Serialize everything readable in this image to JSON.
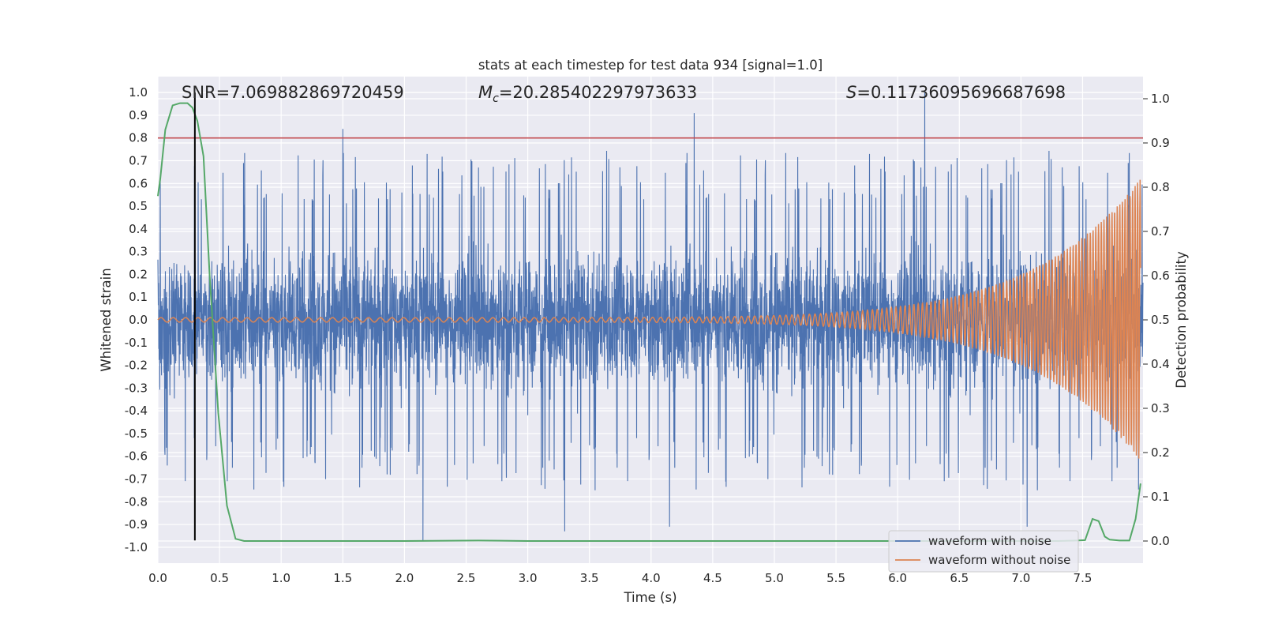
{
  "chart_data": {
    "type": "line",
    "title": "stats at each timestep for test data 934 [signal=1.0]",
    "xlabel": "Time (s)",
    "ylabel_left": "Whitened strain",
    "ylabel_right": "Detection probability",
    "xlim": [
      0.0,
      7.99
    ],
    "ylim_left": [
      -1.07,
      1.07
    ],
    "ylim_right": [
      -0.05,
      1.05
    ],
    "x_ticks": [
      "0.0",
      "0.5",
      "1.0",
      "1.5",
      "2.0",
      "2.5",
      "3.0",
      "3.5",
      "4.0",
      "4.5",
      "5.0",
      "5.5",
      "6.0",
      "6.5",
      "7.0",
      "7.5"
    ],
    "y_left_ticks": [
      "1.0",
      "0.9",
      "0.8",
      "0.7",
      "0.6",
      "0.5",
      "0.4",
      "0.3",
      "0.2",
      "0.1",
      "0.0",
      "-0.1",
      "-0.2",
      "-0.3",
      "-0.4",
      "-0.5",
      "-0.6",
      "-0.7",
      "-0.8",
      "-0.9",
      "-1.0"
    ],
    "y_right_ticks": [
      "1.0",
      "0.9",
      "0.8",
      "0.7",
      "0.6",
      "0.5",
      "0.4",
      "0.3",
      "0.2",
      "0.1",
      "0.0"
    ],
    "annotations": {
      "snr": "SNR=7.069882869720459",
      "mc_symbol": "M",
      "mc_subscript": "c",
      "mc_value": "=20.285402297973633",
      "s_symbol": "S",
      "s_value": "=0.11736095696687698"
    },
    "threshold_line": {
      "y_left": 0.8,
      "color": "#c44e52"
    },
    "marker_line": {
      "x": 0.3,
      "y_from": -0.97,
      "y_to": 1.0,
      "color": "#000000"
    },
    "legend": {
      "location": "lower-right",
      "entries": [
        {
          "label": "waveform with noise",
          "color": "#4c72b0"
        },
        {
          "label": "waveform without noise",
          "color": "#dd8452"
        }
      ]
    },
    "series": [
      {
        "name": "waveform with noise",
        "color": "#4c72b0",
        "axis": "left",
        "typical_amplitude": 0.4,
        "notable_peaks": [
          {
            "x": 1.5,
            "y": 0.84
          },
          {
            "x": 4.35,
            "y": 0.91
          },
          {
            "x": 6.22,
            "y": 1.0
          },
          {
            "x": 2.15,
            "y": -0.97
          },
          {
            "x": 3.3,
            "y": -0.93
          },
          {
            "x": 4.15,
            "y": -0.91
          },
          {
            "x": 7.05,
            "y": -0.91
          }
        ]
      },
      {
        "name": "waveform without noise",
        "color": "#dd8452",
        "axis": "left",
        "start_amplitude": 0.01,
        "end_amplitude": 0.62,
        "start_frequency_hz": 10,
        "end_frequency_hz": 50
      },
      {
        "name": "detection probability",
        "color": "#55a868",
        "axis": "right",
        "x": [
          0.0,
          0.02,
          0.06,
          0.12,
          0.18,
          0.24,
          0.28,
          0.32,
          0.37,
          0.42,
          0.49,
          0.56,
          0.63,
          0.7,
          1.0,
          2.0,
          2.6,
          3.0,
          4.0,
          5.0,
          6.0,
          7.0,
          7.3,
          7.45,
          7.52,
          7.58,
          7.63,
          7.68,
          7.72,
          7.8,
          7.88,
          7.93,
          7.97
        ],
        "values": [
          0.78,
          0.82,
          0.93,
          0.985,
          0.99,
          0.99,
          0.98,
          0.95,
          0.87,
          0.6,
          0.29,
          0.08,
          0.005,
          0.0,
          0.0,
          0.0,
          0.001,
          0.0,
          0.0,
          0.0,
          0.0,
          0.0,
          0.0,
          0.001,
          0.002,
          0.05,
          0.045,
          0.01,
          0.003,
          0.001,
          0.001,
          0.05,
          0.13
        ]
      }
    ]
  }
}
